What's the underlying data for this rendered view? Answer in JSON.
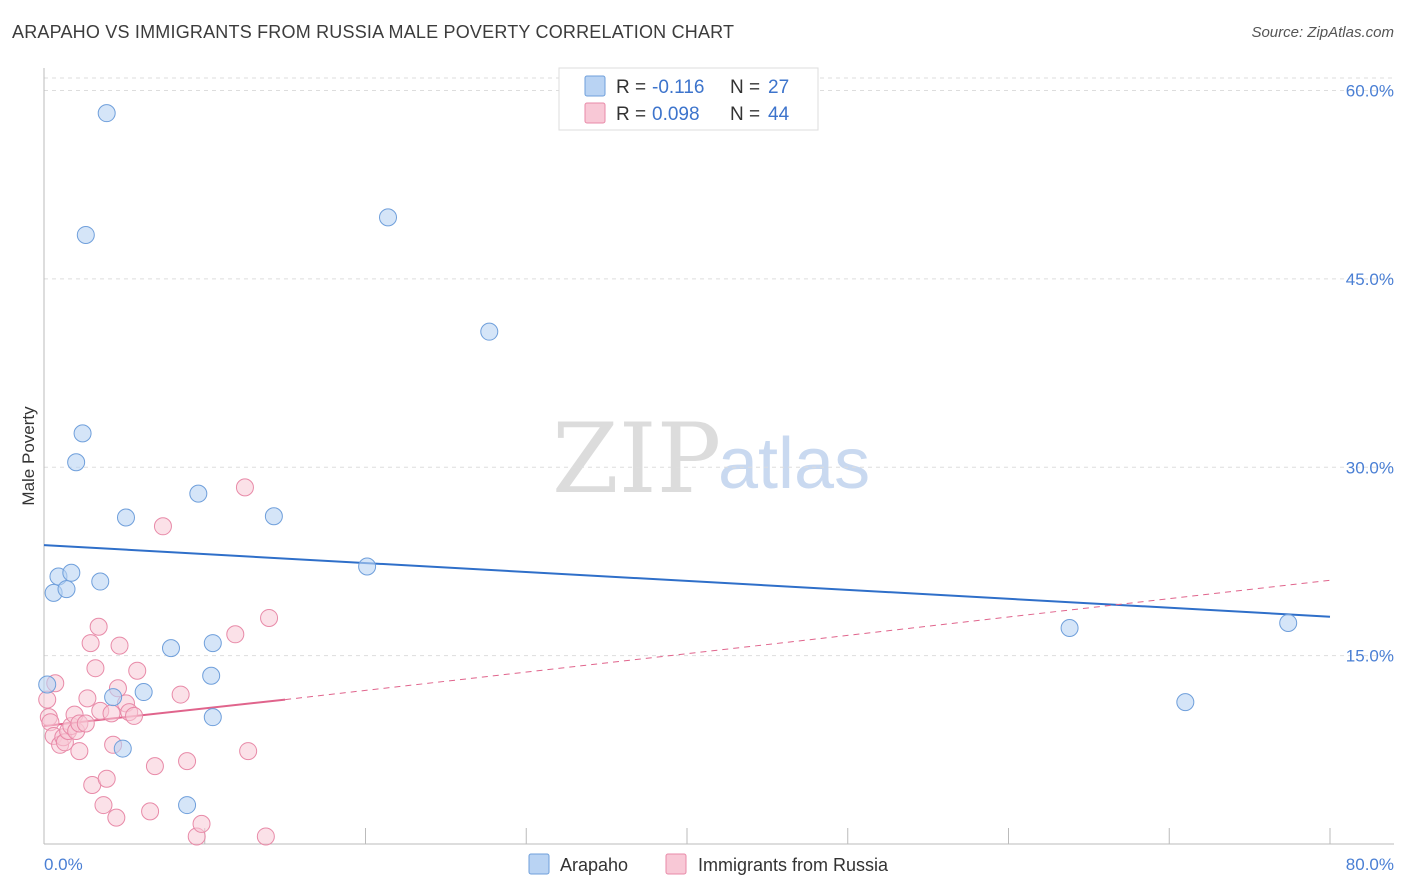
{
  "title": "ARAPAHO VS IMMIGRANTS FROM RUSSIA MALE POVERTY CORRELATION CHART",
  "source": "Source: ZipAtlas.com",
  "watermark": {
    "zip": "ZIP",
    "atlas": "atlas"
  },
  "colors": {
    "series1_fill": "#b9d3f3",
    "series1_stroke": "#6f9fdb",
    "series1_line": "#2f6fc9",
    "series2_fill": "#f8c8d6",
    "series2_stroke": "#e88aa8",
    "series2_line": "#e0648c",
    "label_blue": "#4a7fd4"
  },
  "legend": {
    "rows": [
      {
        "r_label": "R =",
        "r_value": "-0.116",
        "n_label": "N =",
        "n_value": "27"
      },
      {
        "r_label": "R =",
        "r_value": "0.098",
        "n_label": "N =",
        "n_value": "44"
      }
    ]
  },
  "bottom_legend": [
    "Arapaho",
    "Immigrants from Russia"
  ],
  "chart_data": {
    "type": "scatter",
    "title": "ARAPAHO VS IMMIGRANTS FROM RUSSIA MALE POVERTY CORRELATION CHART",
    "xlabel": "",
    "ylabel": "Male Poverty",
    "xlim": [
      0,
      80
    ],
    "ylim": [
      0,
      61
    ],
    "x_tick_labels": [
      "0.0%",
      "80.0%"
    ],
    "y_ticks": [
      15,
      30,
      45,
      60
    ],
    "y_tick_labels": [
      "15.0%",
      "30.0%",
      "45.0%",
      "60.0%"
    ],
    "series": [
      {
        "name": "Arapaho",
        "R": -0.116,
        "N": 27,
        "points": [
          [
            0.2,
            12.7
          ],
          [
            0.6,
            20.0
          ],
          [
            0.9,
            21.3
          ],
          [
            1.4,
            20.3
          ],
          [
            1.7,
            21.6
          ],
          [
            2.0,
            30.4
          ],
          [
            2.4,
            32.7
          ],
          [
            2.6,
            48.5
          ],
          [
            3.5,
            20.9
          ],
          [
            3.9,
            58.2
          ],
          [
            4.3,
            11.7
          ],
          [
            4.9,
            7.6
          ],
          [
            5.1,
            26.0
          ],
          [
            6.2,
            12.1
          ],
          [
            7.9,
            15.6
          ],
          [
            8.9,
            3.1
          ],
          [
            9.6,
            27.9
          ],
          [
            10.4,
            13.4
          ],
          [
            10.5,
            10.1
          ],
          [
            10.5,
            16.0
          ],
          [
            14.3,
            26.1
          ],
          [
            20.1,
            22.1
          ],
          [
            21.4,
            49.9
          ],
          [
            27.7,
            40.8
          ],
          [
            63.8,
            17.2
          ],
          [
            71.0,
            11.3
          ],
          [
            77.4,
            17.6
          ]
        ],
        "trend": {
          "x": [
            0,
            80
          ],
          "y": [
            23.8,
            18.1
          ]
        }
      },
      {
        "name": "Immigrants from Russia",
        "R": 0.098,
        "N": 44,
        "points": [
          [
            0.2,
            11.5
          ],
          [
            0.3,
            10.1
          ],
          [
            0.4,
            9.7
          ],
          [
            0.6,
            8.6
          ],
          [
            0.7,
            12.8
          ],
          [
            1.0,
            7.9
          ],
          [
            1.2,
            8.5
          ],
          [
            1.3,
            8.1
          ],
          [
            1.5,
            9.0
          ],
          [
            1.7,
            9.4
          ],
          [
            1.9,
            10.3
          ],
          [
            2.0,
            9.0
          ],
          [
            2.2,
            9.6
          ],
          [
            2.2,
            7.4
          ],
          [
            2.6,
            9.6
          ],
          [
            2.7,
            11.6
          ],
          [
            2.9,
            16.0
          ],
          [
            3.0,
            4.7
          ],
          [
            3.2,
            14.0
          ],
          [
            3.4,
            17.3
          ],
          [
            3.5,
            10.6
          ],
          [
            3.7,
            3.1
          ],
          [
            3.9,
            5.2
          ],
          [
            4.2,
            10.4
          ],
          [
            4.3,
            7.9
          ],
          [
            4.5,
            2.1
          ],
          [
            4.6,
            12.4
          ],
          [
            4.7,
            15.8
          ],
          [
            5.1,
            11.2
          ],
          [
            5.3,
            10.5
          ],
          [
            5.6,
            10.2
          ],
          [
            5.8,
            13.8
          ],
          [
            6.6,
            2.6
          ],
          [
            6.9,
            6.2
          ],
          [
            7.4,
            25.3
          ],
          [
            8.5,
            11.9
          ],
          [
            8.9,
            6.6
          ],
          [
            9.5,
            0.6
          ],
          [
            9.8,
            1.6
          ],
          [
            11.9,
            16.7
          ],
          [
            12.5,
            28.4
          ],
          [
            12.7,
            7.4
          ],
          [
            13.8,
            0.6
          ],
          [
            14.0,
            18.0
          ]
        ],
        "trend_solid": {
          "x": [
            0,
            15
          ],
          "y": [
            9.4,
            11.5
          ]
        },
        "trend_dashed": {
          "x": [
            15,
            80
          ],
          "y": [
            11.5,
            21.0
          ]
        }
      }
    ]
  }
}
